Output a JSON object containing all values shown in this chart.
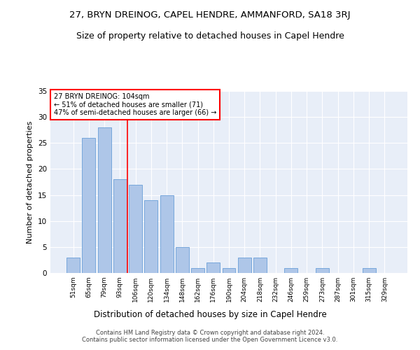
{
  "title": "27, BRYN DREINOG, CAPEL HENDRE, AMMANFORD, SA18 3RJ",
  "subtitle": "Size of property relative to detached houses in Capel Hendre",
  "xlabel": "Distribution of detached houses by size in Capel Hendre",
  "ylabel": "Number of detached properties",
  "categories": [
    "51sqm",
    "65sqm",
    "79sqm",
    "93sqm",
    "106sqm",
    "120sqm",
    "134sqm",
    "148sqm",
    "162sqm",
    "176sqm",
    "190sqm",
    "204sqm",
    "218sqm",
    "232sqm",
    "246sqm",
    "259sqm",
    "273sqm",
    "287sqm",
    "301sqm",
    "315sqm",
    "329sqm"
  ],
  "values": [
    3,
    26,
    28,
    18,
    17,
    14,
    15,
    5,
    1,
    2,
    1,
    3,
    3,
    0,
    1,
    0,
    1,
    0,
    0,
    1,
    0
  ],
  "bar_color": "#aec6e8",
  "bar_edge_color": "#6a9fd8",
  "vline_x": 3.5,
  "vline_color": "red",
  "annotation_text": "27 BRYN DREINOG: 104sqm\n← 51% of detached houses are smaller (71)\n47% of semi-detached houses are larger (66) →",
  "annotation_box_color": "white",
  "annotation_box_edge_color": "red",
  "ylim": [
    0,
    35
  ],
  "yticks": [
    0,
    5,
    10,
    15,
    20,
    25,
    30,
    35
  ],
  "background_color": "#e8eef8",
  "footer_line1": "Contains HM Land Registry data © Crown copyright and database right 2024.",
  "footer_line2": "Contains public sector information licensed under the Open Government Licence v3.0.",
  "title_fontsize": 9.5,
  "subtitle_fontsize": 9,
  "xlabel_fontsize": 8.5,
  "ylabel_fontsize": 8
}
